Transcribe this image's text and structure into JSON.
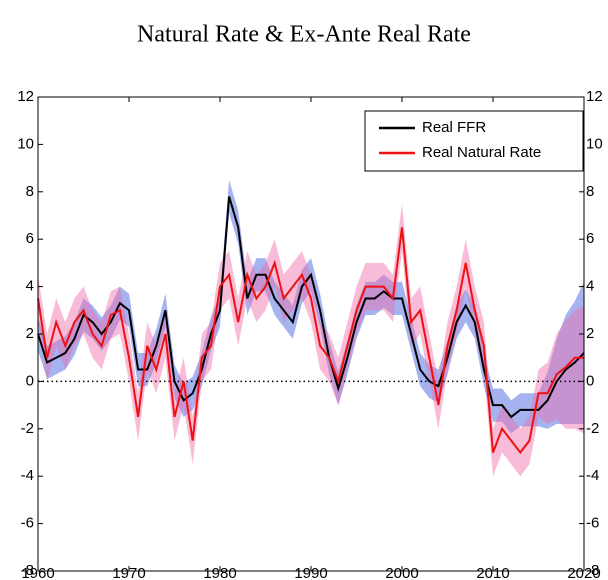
{
  "chart_data": {
    "type": "line",
    "title": "Natural Rate & Ex-Ante Real Rate",
    "x": [
      1960,
      1961,
      1962,
      1963,
      1964,
      1965,
      1966,
      1967,
      1968,
      1969,
      1970,
      1971,
      1972,
      1973,
      1974,
      1975,
      1976,
      1977,
      1978,
      1979,
      1980,
      1981,
      1982,
      1983,
      1984,
      1985,
      1986,
      1987,
      1988,
      1989,
      1990,
      1991,
      1992,
      1993,
      1994,
      1995,
      1996,
      1997,
      1998,
      1999,
      2000,
      2001,
      2002,
      2003,
      2004,
      2005,
      2006,
      2007,
      2008,
      2009,
      2010,
      2011,
      2012,
      2013,
      2014,
      2015,
      2016,
      2017,
      2018,
      2019,
      2020
    ],
    "series": [
      {
        "name": "Real FFR",
        "color": "#000000",
        "band_color": "#5b74e6",
        "values": [
          2.0,
          0.8,
          1.0,
          1.2,
          1.8,
          2.8,
          2.5,
          2.0,
          2.5,
          3.3,
          3.0,
          0.5,
          0.5,
          1.5,
          3.0,
          0.0,
          -0.8,
          -0.5,
          0.5,
          2.0,
          3.0,
          7.8,
          6.5,
          3.5,
          4.5,
          4.5,
          3.5,
          3.0,
          2.5,
          4.0,
          4.5,
          3.0,
          1.0,
          -0.3,
          1.0,
          2.5,
          3.5,
          3.5,
          3.8,
          3.5,
          3.5,
          2.0,
          0.5,
          0.0,
          -0.2,
          1.0,
          2.5,
          3.2,
          2.5,
          0.5,
          -1.0,
          -1.0,
          -1.5,
          -1.2,
          -1.2,
          -1.2,
          -0.8,
          0.0,
          0.5,
          0.8,
          1.2
        ],
        "lower": [
          1.3,
          0.1,
          0.3,
          0.5,
          1.1,
          2.1,
          1.8,
          1.3,
          1.8,
          2.6,
          2.3,
          -0.2,
          -0.2,
          0.8,
          2.3,
          -0.7,
          -1.5,
          -1.2,
          -0.2,
          1.3,
          2.3,
          7.1,
          5.8,
          2.8,
          3.8,
          3.8,
          2.8,
          2.3,
          1.8,
          3.3,
          3.8,
          2.3,
          0.3,
          -1.0,
          0.3,
          1.8,
          2.8,
          2.8,
          3.1,
          2.8,
          2.8,
          1.3,
          -0.2,
          -0.7,
          -0.9,
          0.3,
          1.8,
          2.5,
          1.8,
          -0.2,
          -1.7,
          -1.7,
          -2.2,
          -1.9,
          -1.9,
          -1.9,
          -2.0,
          -1.8,
          -1.8,
          -1.8,
          -1.8
        ],
        "upper": [
          2.7,
          1.5,
          1.7,
          1.9,
          2.5,
          3.5,
          3.2,
          2.7,
          3.2,
          4.0,
          3.7,
          1.2,
          1.2,
          2.2,
          3.7,
          0.7,
          -0.1,
          0.2,
          1.2,
          2.7,
          3.7,
          8.5,
          7.2,
          4.2,
          5.2,
          5.2,
          4.2,
          3.7,
          3.2,
          4.7,
          5.2,
          3.7,
          1.7,
          0.4,
          1.7,
          3.2,
          4.2,
          4.2,
          4.5,
          4.2,
          4.2,
          2.7,
          1.2,
          0.7,
          0.5,
          1.7,
          3.2,
          3.9,
          3.2,
          1.2,
          -0.3,
          -0.3,
          -0.8,
          -0.5,
          -0.5,
          -0.5,
          0.4,
          1.8,
          2.8,
          3.4,
          4.2
        ]
      },
      {
        "name": "Real Natural Rate",
        "color": "#ee1111",
        "band_color": "#f06aa8",
        "values": [
          3.5,
          1.0,
          2.5,
          1.5,
          2.5,
          3.0,
          2.0,
          1.5,
          2.8,
          3.0,
          1.0,
          -1.5,
          1.5,
          0.5,
          2.0,
          -1.5,
          0.0,
          -2.5,
          1.0,
          1.5,
          4.0,
          4.5,
          2.5,
          4.5,
          3.5,
          4.0,
          5.0,
          3.5,
          4.0,
          4.5,
          3.5,
          1.5,
          1.0,
          0.0,
          1.5,
          3.0,
          4.0,
          4.0,
          4.0,
          3.5,
          6.5,
          2.5,
          3.0,
          1.0,
          -1.0,
          1.5,
          3.0,
          5.0,
          3.0,
          1.5,
          -3.0,
          -2.0,
          -2.5,
          -3.0,
          -2.5,
          -0.5,
          -0.5,
          0.3,
          0.6,
          1.0,
          1.0
        ],
        "lower": [
          2.5,
          0.0,
          1.5,
          0.5,
          1.5,
          2.0,
          1.0,
          0.5,
          1.8,
          2.0,
          0.0,
          -2.5,
          0.5,
          -0.5,
          1.0,
          -2.5,
          -1.0,
          -3.5,
          0.0,
          0.5,
          3.0,
          3.5,
          1.5,
          3.5,
          2.5,
          3.0,
          4.0,
          2.5,
          3.0,
          3.5,
          2.5,
          0.5,
          0.0,
          -1.0,
          0.5,
          2.0,
          3.0,
          3.0,
          3.0,
          2.5,
          5.5,
          1.5,
          2.0,
          0.0,
          -2.0,
          0.5,
          2.0,
          4.0,
          2.0,
          0.5,
          -4.0,
          -3.0,
          -3.5,
          -4.0,
          -3.5,
          -1.5,
          -1.8,
          -1.6,
          -2.0,
          -2.0,
          -2.2
        ],
        "upper": [
          4.5,
          2.0,
          3.5,
          2.5,
          3.5,
          4.0,
          3.0,
          2.5,
          3.8,
          4.0,
          2.0,
          -0.5,
          2.5,
          1.5,
          3.0,
          -0.5,
          1.0,
          -1.5,
          2.0,
          2.5,
          5.0,
          5.5,
          3.5,
          5.5,
          4.5,
          5.0,
          6.0,
          4.5,
          5.0,
          5.5,
          4.5,
          2.5,
          2.0,
          1.0,
          2.5,
          4.0,
          5.0,
          5.0,
          5.0,
          4.5,
          7.5,
          3.5,
          4.0,
          2.0,
          0.0,
          2.5,
          4.0,
          6.0,
          4.0,
          2.5,
          -2.0,
          -1.0,
          -1.5,
          -2.0,
          -1.5,
          0.5,
          0.8,
          2.0,
          2.6,
          3.0,
          3.2
        ]
      }
    ],
    "xlim": [
      1960,
      2020
    ],
    "xticks": [
      1960,
      1970,
      1980,
      1990,
      2000,
      2010,
      2020
    ],
    "ylim": [
      -8,
      12
    ],
    "yticks": [
      -8,
      -6,
      -4,
      -2,
      0,
      2,
      4,
      6,
      8,
      10,
      12
    ],
    "hline": 0,
    "legend": "upper right",
    "grid": false
  }
}
